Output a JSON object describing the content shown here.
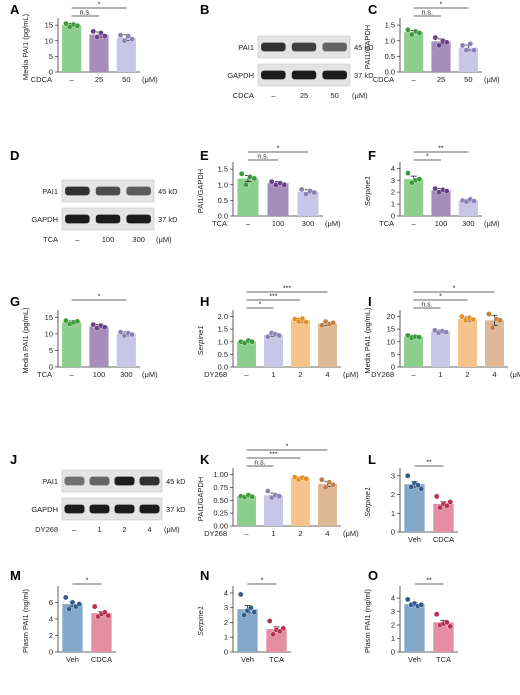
{
  "colors": {
    "green": "#8ccf8c",
    "green_dot": "#3a9a3a",
    "purple": "#a68dbb",
    "purple_dot": "#6b3f86",
    "lavender": "#c8c6e6",
    "lavender_dot": "#8a80b5",
    "peach": "#f6c48b",
    "peach_dot": "#e58f1e",
    "tan": "#ddb895",
    "tan_dot": "#c17d42",
    "blue": "#86a8c8",
    "blue_dot": "#2e5c8a",
    "pink": "#e58ea3",
    "pink_dot": "#b8304f"
  },
  "chart_data": [
    {
      "id": "A",
      "type": "bar",
      "ylabel": "Media PAI1 (pg/mL)",
      "ylim": [
        0,
        16
      ],
      "yticks": [
        0,
        5,
        10,
        15
      ],
      "axis_label": "CDCA",
      "unit": "(μM)",
      "categories": [
        "–",
        "25",
        "50"
      ],
      "values": [
        15.0,
        12.0,
        11.0
      ],
      "errors": [
        0.5,
        0.8,
        0.9
      ],
      "points": [
        [
          15.5,
          14.5,
          15.2,
          14.8
        ],
        [
          13.0,
          11.2,
          12.5,
          11.5
        ],
        [
          11.8,
          10.0,
          11.5,
          10.5
        ]
      ],
      "colors": [
        "green",
        "purple",
        "lavender"
      ],
      "significance": [
        {
          "from": 0,
          "to": 1,
          "label": "n.s.",
          "level": 1
        },
        {
          "from": 0,
          "to": 2,
          "label": "*",
          "level": 2
        }
      ]
    },
    {
      "id": "C",
      "type": "bar",
      "ylabel": "PAI1/GAPDH",
      "ylim": [
        0,
        1.6
      ],
      "yticks": [
        0.0,
        0.5,
        1.0,
        1.5
      ],
      "axis_label": "CDCA",
      "unit": "(μM)",
      "categories": [
        "–",
        "25",
        "50"
      ],
      "values": [
        1.28,
        0.98,
        0.78
      ],
      "errors": [
        0.05,
        0.08,
        0.08
      ],
      "points": [
        [
          1.35,
          1.2,
          1.3,
          1.25
        ],
        [
          1.1,
          0.85,
          1.0,
          0.95
        ],
        [
          0.85,
          0.7,
          0.9,
          0.7
        ]
      ],
      "colors": [
        "green",
        "purple",
        "lavender"
      ],
      "significance": [
        {
          "from": 0,
          "to": 1,
          "label": "n.s.",
          "level": 1
        },
        {
          "from": 0,
          "to": 2,
          "label": "*",
          "level": 2
        }
      ]
    },
    {
      "id": "E",
      "type": "bar",
      "ylabel": "PAI1/GAPDH",
      "ylim": [
        0,
        1.6
      ],
      "yticks": [
        0.0,
        0.5,
        1.0,
        1.5
      ],
      "axis_label": "TCA",
      "unit": "(μM)",
      "categories": [
        "–",
        "100",
        "300"
      ],
      "values": [
        1.2,
        1.05,
        0.78
      ],
      "errors": [
        0.1,
        0.05,
        0.06
      ],
      "points": [
        [
          1.35,
          1.0,
          1.25,
          1.2
        ],
        [
          1.1,
          1.0,
          1.05,
          1.0
        ],
        [
          0.85,
          0.7,
          0.8,
          0.75
        ]
      ],
      "colors": [
        "green",
        "purple",
        "lavender"
      ],
      "significance": [
        {
          "from": 0,
          "to": 1,
          "label": "n.s.",
          "level": 1
        },
        {
          "from": 0,
          "to": 2,
          "label": "*",
          "level": 2
        }
      ]
    },
    {
      "id": "F",
      "type": "bar",
      "ylabel": "Serpine1",
      "ylabel_italic": true,
      "ylim": [
        0,
        4.2
      ],
      "yticks": [
        0,
        1,
        2,
        3,
        4
      ],
      "axis_label": "TCA",
      "unit": "(μM)",
      "categories": [
        "–",
        "100",
        "300"
      ],
      "values": [
        3.1,
        2.15,
        1.3
      ],
      "errors": [
        0.25,
        0.15,
        0.1
      ],
      "points": [
        [
          3.6,
          2.8,
          3.0,
          3.1
        ],
        [
          2.3,
          2.0,
          2.2,
          2.1
        ],
        [
          1.3,
          1.2,
          1.4,
          1.25
        ]
      ],
      "colors": [
        "green",
        "purple",
        "lavender"
      ],
      "significance": [
        {
          "from": 0,
          "to": 1,
          "label": "*",
          "level": 1
        },
        {
          "from": 0,
          "to": 2,
          "label": "**",
          "level": 2
        }
      ]
    },
    {
      "id": "G",
      "type": "bar",
      "ylabel": "Media PAI1 (pg/mL)",
      "ylim": [
        0,
        16
      ],
      "yticks": [
        0,
        5,
        10,
        15
      ],
      "axis_label": "TCA",
      "unit": "(μM)",
      "categories": [
        "–",
        "100",
        "300"
      ],
      "values": [
        13.5,
        12.3,
        10.0
      ],
      "errors": [
        0.4,
        0.5,
        0.6
      ],
      "points": [
        [
          14.0,
          13.0,
          13.5,
          13.8
        ],
        [
          12.8,
          11.8,
          12.5,
          12.0
        ],
        [
          10.5,
          9.5,
          10.2,
          9.8
        ]
      ],
      "colors": [
        "green",
        "purple",
        "lavender"
      ],
      "significance": [
        {
          "from": 0,
          "to": 2,
          "label": "*",
          "level": 2
        }
      ]
    },
    {
      "id": "H",
      "type": "bar",
      "ylabel": "Serpine1",
      "ylabel_italic": true,
      "ylim": [
        0,
        2.1
      ],
      "yticks": [
        0.0,
        0.5,
        1.0,
        1.5,
        2.0
      ],
      "axis_label": "DY268",
      "unit": "(μM)",
      "categories": [
        "–",
        "1",
        "2",
        "4"
      ],
      "values": [
        1.0,
        1.27,
        1.85,
        1.72
      ],
      "errors": [
        0.04,
        0.05,
        0.07,
        0.07
      ],
      "points": [
        [
          1.0,
          0.95,
          1.05,
          1.0
        ],
        [
          1.2,
          1.35,
          1.3,
          1.25
        ],
        [
          1.9,
          1.8,
          1.92,
          1.78
        ],
        [
          1.65,
          1.8,
          1.7,
          1.75
        ]
      ],
      "colors": [
        "green",
        "lavender",
        "peach",
        "tan"
      ],
      "significance": [
        {
          "from": 0,
          "to": 1,
          "label": "*",
          "level": 1
        },
        {
          "from": 0,
          "to": 2,
          "label": "***",
          "level": 2
        },
        {
          "from": 0,
          "to": 3,
          "label": "***",
          "level": 3
        }
      ]
    },
    {
      "id": "I",
      "type": "bar",
      "ylabel": "Media PAI1 (pg/mL)",
      "ylim": [
        0,
        21
      ],
      "yticks": [
        0,
        5,
        10,
        15,
        20
      ],
      "axis_label": "DY268",
      "unit": "(μM)",
      "categories": [
        "–",
        "1",
        "2",
        "4"
      ],
      "values": [
        12.0,
        14.0,
        19.0,
        18.5
      ],
      "errors": [
        0.6,
        0.6,
        0.8,
        2.0
      ],
      "points": [
        [
          12.5,
          11.5,
          12.0,
          11.8
        ],
        [
          14.5,
          13.5,
          14.2,
          13.8
        ],
        [
          20.0,
          18.5,
          19.5,
          18.8
        ],
        [
          21.0,
          15.5,
          19.0,
          18.5
        ]
      ],
      "colors": [
        "green",
        "lavender",
        "peach",
        "tan"
      ],
      "significance": [
        {
          "from": 0,
          "to": 1,
          "label": "n.s.",
          "level": 1
        },
        {
          "from": 0,
          "to": 2,
          "label": "*",
          "level": 2
        },
        {
          "from": 0,
          "to": 3,
          "label": "*",
          "level": 3
        }
      ]
    },
    {
      "id": "K",
      "type": "bar",
      "ylabel": "PAI1/GAPDH",
      "ylim": [
        0,
        1.05
      ],
      "yticks": [
        0.0,
        0.25,
        0.5,
        0.75,
        1.0
      ],
      "ytick_labels": [
        "0.00",
        "0.25",
        "0.50",
        "0.75",
        "1.00"
      ],
      "axis_label": "DY268",
      "unit": "(μM)",
      "categories": [
        "–",
        "1",
        "2",
        "4"
      ],
      "values": [
        0.58,
        0.6,
        0.93,
        0.82
      ],
      "errors": [
        0.02,
        0.04,
        0.02,
        0.05
      ],
      "points": [
        [
          0.58,
          0.56,
          0.6,
          0.57
        ],
        [
          0.68,
          0.55,
          0.6,
          0.58
        ],
        [
          0.95,
          0.9,
          0.94,
          0.92
        ],
        [
          0.9,
          0.75,
          0.85,
          0.8
        ]
      ],
      "colors": [
        "green",
        "lavender",
        "peach",
        "tan"
      ],
      "significance": [
        {
          "from": 0,
          "to": 1,
          "label": "n.s.",
          "level": 1
        },
        {
          "from": 0,
          "to": 2,
          "label": "***",
          "level": 2
        },
        {
          "from": 0,
          "to": 3,
          "label": "*",
          "level": 3
        }
      ]
    },
    {
      "id": "L",
      "type": "bar",
      "ylabel": "Serpine1",
      "ylabel_italic": true,
      "ylim": [
        0,
        3.2
      ],
      "yticks": [
        0,
        1,
        2,
        3
      ],
      "categories": [
        "Veh",
        "CDCA"
      ],
      "values": [
        2.55,
        1.5
      ],
      "errors": [
        0.15,
        0.12
      ],
      "points": [
        [
          3.0,
          2.4,
          2.6,
          2.5,
          2.3
        ],
        [
          1.9,
          1.3,
          1.5,
          1.4,
          1.6
        ]
      ],
      "colors": [
        "blue",
        "pink"
      ],
      "significance": [
        {
          "from": 0,
          "to": 1,
          "label": "**",
          "level": 1
        }
      ]
    },
    {
      "id": "M",
      "type": "bar",
      "ylabel": "Plasm PAI1 (ng/ml)",
      "ylim": [
        0,
        7.5
      ],
      "yticks": [
        0,
        2,
        4,
        6
      ],
      "categories": [
        "Veh",
        "CDCA"
      ],
      "values": [
        5.8,
        4.7
      ],
      "errors": [
        0.25,
        0.2
      ],
      "points": [
        [
          6.6,
          5.2,
          6.0,
          5.5,
          5.8
        ],
        [
          5.5,
          4.3,
          4.6,
          4.8,
          4.4
        ]
      ],
      "colors": [
        "blue",
        "pink"
      ],
      "significance": [
        {
          "from": 0,
          "to": 1,
          "label": "*",
          "level": 1
        }
      ]
    },
    {
      "id": "N",
      "type": "bar",
      "ylabel": "Serpine1",
      "ylabel_italic": true,
      "ylim": [
        0,
        4.2
      ],
      "yticks": [
        0,
        1,
        2,
        3,
        4
      ],
      "categories": [
        "Veh",
        "TCA"
      ],
      "values": [
        2.9,
        1.55
      ],
      "errors": [
        0.25,
        0.15
      ],
      "points": [
        [
          3.9,
          2.5,
          2.8,
          3.0,
          2.7
        ],
        [
          2.1,
          1.2,
          1.5,
          1.4,
          1.6
        ]
      ],
      "colors": [
        "blue",
        "pink"
      ],
      "significance": [
        {
          "from": 0,
          "to": 1,
          "label": "*",
          "level": 1
        }
      ]
    },
    {
      "id": "O",
      "type": "bar",
      "ylabel": "Plasm PAI1 (ng/ml)",
      "ylim": [
        0,
        4.6
      ],
      "yticks": [
        0,
        1,
        2,
        3,
        4
      ],
      "categories": [
        "Veh",
        "TCA"
      ],
      "values": [
        3.55,
        2.2
      ],
      "errors": [
        0.12,
        0.15
      ],
      "points": [
        [
          3.9,
          3.5,
          3.6,
          3.4,
          3.5
        ],
        [
          2.8,
          2.0,
          2.1,
          2.2,
          1.9
        ]
      ],
      "colors": [
        "blue",
        "pink"
      ],
      "significance": [
        {
          "from": 0,
          "to": 1,
          "label": "**",
          "level": 1
        }
      ]
    }
  ],
  "blots": [
    {
      "id": "B",
      "treatment": "CDCA",
      "unit": "(μM)",
      "conditions": [
        "–",
        "25",
        "50"
      ],
      "rows": [
        {
          "protein": "PAI1",
          "size": "45 kD",
          "intensity": [
            0.85,
            0.78,
            0.62
          ]
        },
        {
          "protein": "GAPDH",
          "size": "37 kD",
          "intensity": [
            0.95,
            0.95,
            0.95
          ]
        }
      ]
    },
    {
      "id": "D",
      "treatment": "TCA",
      "unit": "(μM)",
      "conditions": [
        "–",
        "100",
        "300"
      ],
      "rows": [
        {
          "protein": "PAI1",
          "size": "45 kD",
          "intensity": [
            0.85,
            0.72,
            0.65
          ]
        },
        {
          "protein": "GAPDH",
          "size": "37 kD",
          "intensity": [
            0.95,
            0.95,
            0.95
          ]
        }
      ]
    },
    {
      "id": "J",
      "treatment": "DY268",
      "unit": "(μM)",
      "conditions": [
        "–",
        "1",
        "2",
        "4"
      ],
      "rows": [
        {
          "protein": "PAI1",
          "size": "45 kD",
          "intensity": [
            0.55,
            0.6,
            0.95,
            0.85
          ]
        },
        {
          "protein": "GAPDH",
          "size": "37 kD",
          "intensity": [
            0.95,
            0.95,
            0.95,
            0.95
          ]
        }
      ]
    }
  ]
}
